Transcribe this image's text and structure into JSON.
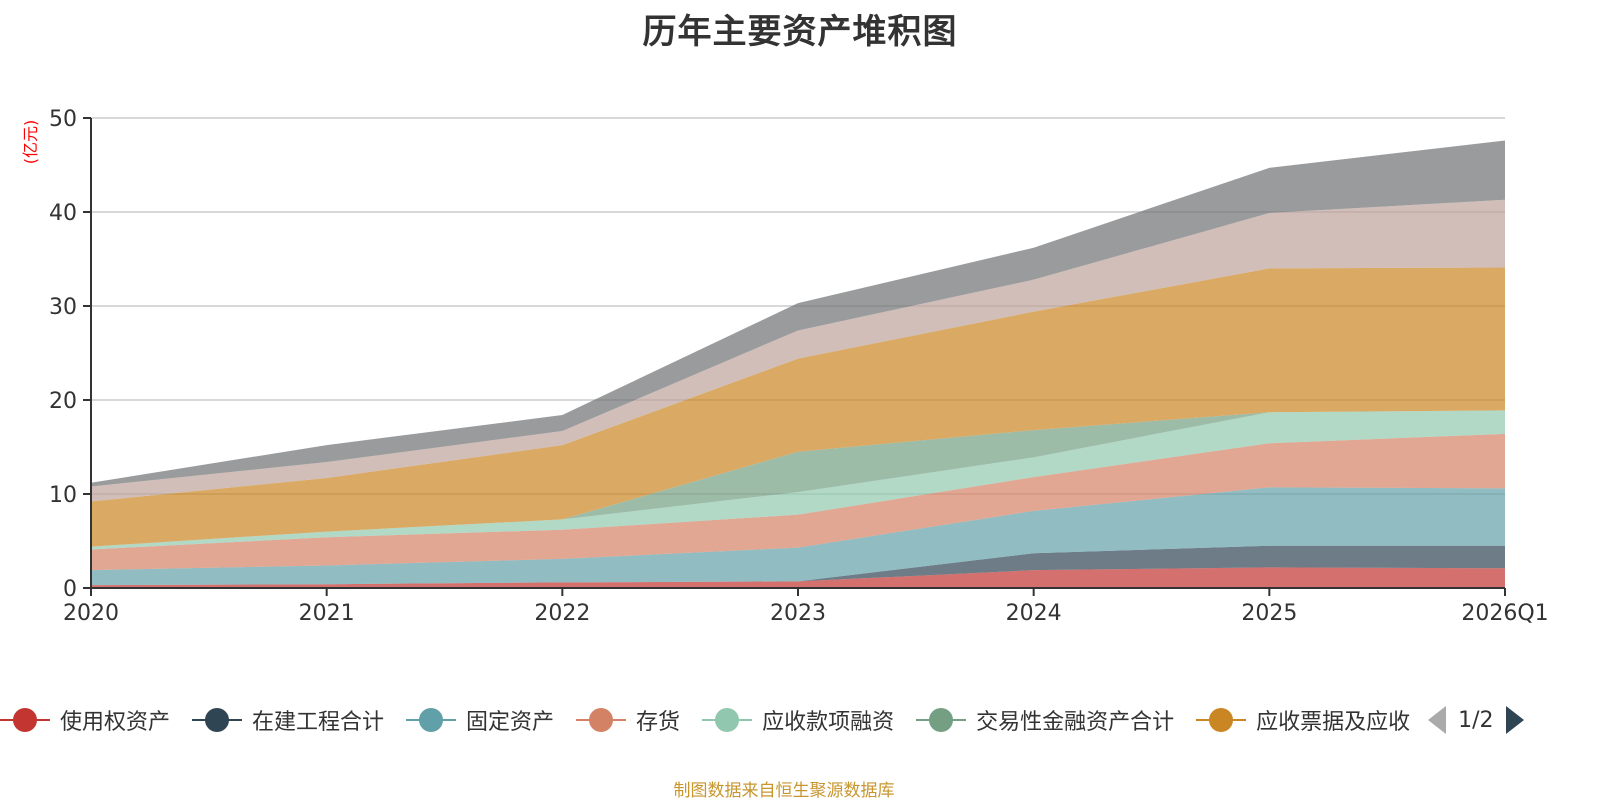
{
  "chart_data": {
    "type": "area",
    "stacked": true,
    "title": "历年主要资产堆积图",
    "ylabel": "(亿元)",
    "xlabel": "",
    "categories": [
      "2020",
      "2021",
      "2022",
      "2023",
      "2024",
      "2025",
      "2026Q1"
    ],
    "ylim": [
      0,
      50
    ],
    "yticks": [
      0,
      10,
      20,
      30,
      40,
      50
    ],
    "grid": true,
    "legend_position": "bottom",
    "series": [
      {
        "name": "使用权资产",
        "color": "#c23531",
        "values": [
          0.3,
          0.4,
          0.6,
          0.7,
          1.9,
          2.2,
          2.1
        ]
      },
      {
        "name": "在建工程合计",
        "color": "#2f4554",
        "values": [
          0,
          0,
          0,
          0,
          1.8,
          2.3,
          2.4
        ]
      },
      {
        "name": "固定资产",
        "color": "#61a0a8",
        "values": [
          1.6,
          2.0,
          2.5,
          3.6,
          4.5,
          6.2,
          6.1
        ]
      },
      {
        "name": "存货",
        "color": "#d48265",
        "values": [
          2.2,
          3.0,
          3.1,
          3.5,
          3.6,
          4.7,
          5.8
        ]
      },
      {
        "name": "应收款项融资",
        "color": "#91c7ae",
        "values": [
          0.3,
          0.6,
          1.1,
          2.4,
          2.1,
          3.3,
          2.5
        ]
      },
      {
        "name": "交易性金融资产合计",
        "color": "#749f83",
        "values": [
          0,
          0,
          0,
          4.3,
          2.9,
          0,
          0
        ]
      },
      {
        "name": "应收票据及应收",
        "color": "#ca8622",
        "values": [
          4.8,
          5.7,
          7.9,
          9.9,
          12.6,
          15.3,
          15.2
        ]
      },
      {
        "name": "",
        "color": "#bda29a",
        "values": [
          1.6,
          1.7,
          1.5,
          3.0,
          3.4,
          5.9,
          7.2
        ]
      },
      {
        "name": "",
        "color": "#6e7074",
        "values": [
          0.4,
          1.8,
          1.7,
          2.9,
          3.4,
          4.8,
          6.3
        ]
      }
    ]
  },
  "legend": {
    "visible_items": [
      {
        "label": "使用权资产",
        "color": "#c23531"
      },
      {
        "label": "在建工程合计",
        "color": "#2f4554"
      },
      {
        "label": "固定资产",
        "color": "#61a0a8"
      },
      {
        "label": "存货",
        "color": "#d48265"
      },
      {
        "label": "应收款项融资",
        "color": "#91c7ae"
      },
      {
        "label": "交易性金融资产合计",
        "color": "#749f83"
      },
      {
        "label": "应收票据及应收",
        "color": "#ca8622"
      }
    ],
    "page_indicator": "1/2"
  },
  "source_note": "制图数据来自恒生聚源数据库"
}
